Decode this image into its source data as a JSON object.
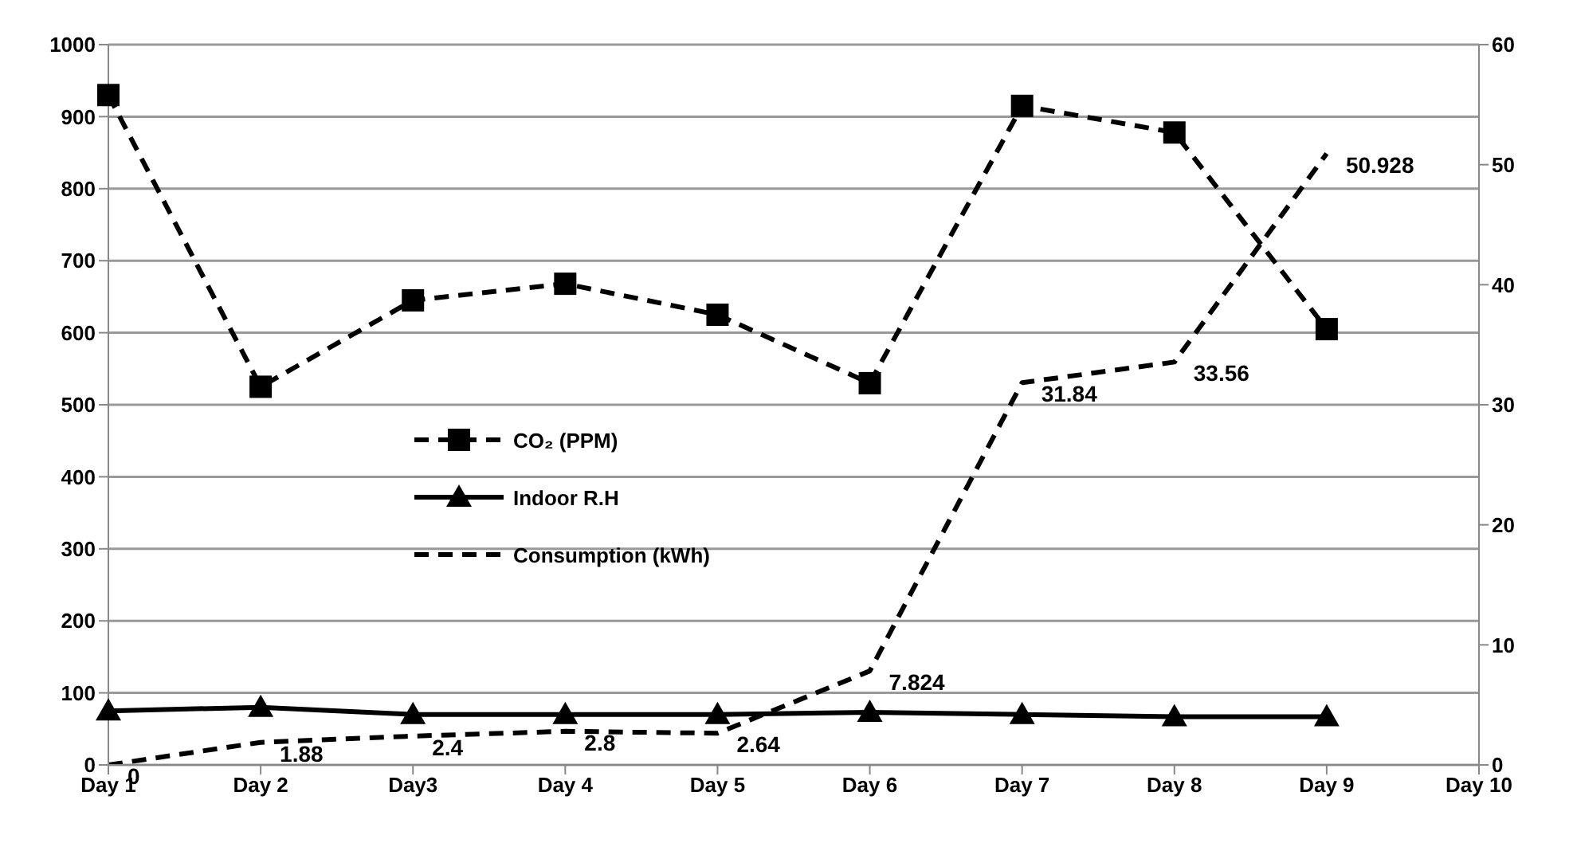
{
  "chart_data": {
    "type": "line",
    "categories": [
      "Day 1",
      "Day 2",
      "Day3",
      "Day 4",
      "Day 5",
      "Day 6",
      "Day 7",
      "Day 8",
      "Day 9",
      "Day 10"
    ],
    "series": [
      {
        "name": "CO₂ (PPM)",
        "color": "#000000",
        "marker": "square",
        "line_style": "dashed",
        "values": [
          930,
          525,
          645,
          668,
          625,
          530,
          915,
          878,
          605,
          null
        ]
      },
      {
        "name": "Indoor R.H",
        "color": "#000000",
        "marker": "triangle",
        "line_style": "solid",
        "values": [
          75,
          80,
          70,
          70,
          70,
          73,
          70,
          67,
          67,
          null
        ]
      },
      {
        "name": "Consumption (kWh)",
        "color": "#000000",
        "marker": "none",
        "line_style": "dashed",
        "axis": "y2",
        "values": [
          0,
          1.88,
          2.4,
          2.8,
          2.64,
          7.824,
          31.84,
          33.56,
          50.928,
          null
        ],
        "value_labels": [
          "0",
          "1.88",
          "2.4",
          "2.8",
          "2.64",
          "7.824",
          "31.84",
          "33.56",
          "50.928",
          null
        ]
      }
    ],
    "ylim": [
      0,
      1000
    ],
    "yticks": [
      0,
      100,
      200,
      300,
      400,
      500,
      600,
      700,
      800,
      900,
      1000
    ],
    "y2lim": [
      0,
      60
    ],
    "y2ticks": [
      0,
      10,
      20,
      30,
      40,
      50,
      60
    ],
    "grid": "y",
    "legend": "center left"
  }
}
